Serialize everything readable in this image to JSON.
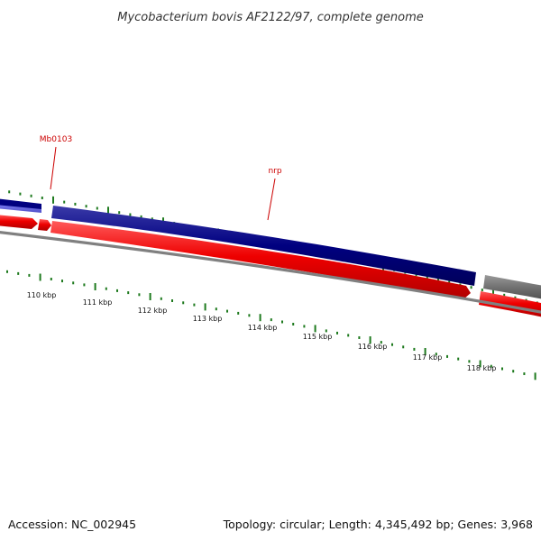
{
  "title": "Mycobacterium bovis AF2122/97, complete genome",
  "footer": {
    "accession": "Accession: NC_002945",
    "summary": "Topology: circular; Length: 4,345,492 bp; Genes: 3,968"
  },
  "colors": {
    "label": "#cc0000",
    "tick": "#1e7a1e",
    "backbone": "#808080",
    "forward": "#000080",
    "reverse": "#ee0000",
    "other": "#707070"
  },
  "gene_labels": [
    {
      "name": "Mb0103"
    },
    {
      "name": "nrp"
    }
  ],
  "scale_labels": [
    "110 kbp",
    "111 kbp",
    "112 kbp",
    "113 kbp",
    "114 kbp",
    "115 kbp",
    "116 kbp",
    "117 kbp",
    "118 kbp"
  ]
}
